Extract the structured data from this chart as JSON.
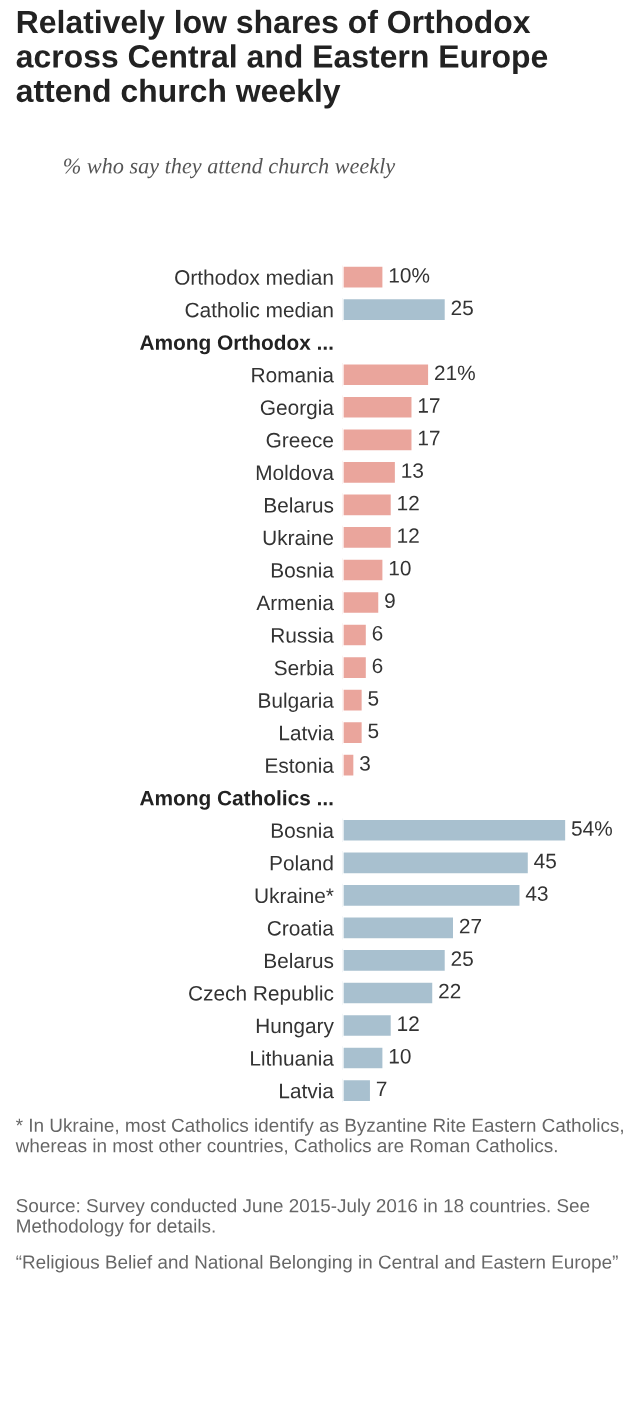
{
  "chart_data": {
    "type": "bar",
    "orientation": "horizontal",
    "title": "Relatively low shares of Orthodox across Central and Eastern Europe attend church weekly",
    "subtitle": "% who say they attend church weekly",
    "categories": [
      "Orthodox median",
      "Catholic median",
      "Among Orthodox ...",
      "Romania",
      "Georgia",
      "Greece",
      "Moldova",
      "Belarus",
      "Ukraine",
      "Bosnia",
      "Armenia",
      "Russia",
      "Serbia",
      "Bulgaria",
      "Latvia",
      "Estonia",
      "Among Catholics ...",
      "Bosnia",
      "Poland",
      "Ukraine*",
      "Croatia",
      "Belarus",
      "Czech Republic",
      "Hungary",
      "Lithuania",
      "Latvia"
    ],
    "values": [
      10,
      25,
      null,
      21,
      17,
      17,
      13,
      12,
      12,
      10,
      9,
      6,
      6,
      5,
      5,
      3,
      null,
      54,
      45,
      43,
      27,
      25,
      22,
      12,
      10,
      7
    ],
    "value_labels": [
      "10%",
      "25",
      null,
      "21%",
      "17",
      "17",
      "13",
      "12",
      "12",
      "10",
      "9",
      "6",
      "6",
      "5",
      "5",
      "3",
      null,
      "54%",
      "45",
      "43",
      "27",
      "25",
      "22",
      "12",
      "10",
      "7"
    ],
    "colors": [
      "#eaa59c",
      "#a8c0cf",
      null,
      "#eaa59c",
      "#eaa59c",
      "#eaa59c",
      "#eaa59c",
      "#eaa59c",
      "#eaa59c",
      "#eaa59c",
      "#eaa59c",
      "#eaa59c",
      "#eaa59c",
      "#eaa59c",
      "#eaa59c",
      "#eaa59c",
      null,
      "#a8c0cf",
      "#a8c0cf",
      "#a8c0cf",
      "#a8c0cf",
      "#a8c0cf",
      "#a8c0cf",
      "#a8c0cf",
      "#a8c0cf",
      "#a8c0cf"
    ],
    "grid": false,
    "legend": false,
    "tick_labels": "y",
    "annotations": [
      "* In Ukraine, most Catholics identify as Byzantine Rite Eastern Catholics, whereas in most other countries, Catholics are Roman Catholics.",
      "Source: Survey conducted June 2015-July 2016 in 18 countries. See Methodology for details.",
      "“Religious Belief and National Belonging in Central and Eastern Europe”"
    ]
  }
}
